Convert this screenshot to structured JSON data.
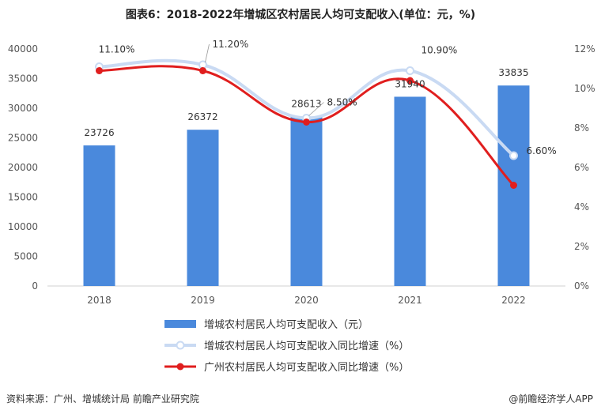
{
  "title": "图表6：2018-2022年增城区农村居民人均可支配收入(单位：元，%)",
  "footer": {
    "source": "资料来源：广州、增城统计局 前瞻产业研究院",
    "brand": "@前瞻经济学人APP"
  },
  "chart_data": {
    "type": "bar",
    "categories": [
      "2018",
      "2019",
      "2020",
      "2021",
      "2022"
    ],
    "series": [
      {
        "name": "增城农村居民人均可支配收入（元）",
        "type": "bar",
        "axis": "left",
        "values": [
          23726,
          26372,
          28613,
          31940,
          33835
        ],
        "labels": [
          "23726",
          "26372",
          "28613",
          "31940",
          "33835"
        ],
        "color": "#4a89dc"
      },
      {
        "name": "增城农村居民人均可支配收入同比增速（%）",
        "type": "line",
        "axis": "right",
        "values": [
          11.1,
          11.2,
          8.5,
          10.9,
          6.6
        ],
        "labels": [
          "11.10%",
          "11.20%",
          "8.50%",
          "10.90%",
          "6.60%"
        ],
        "color": "#c9daf3"
      },
      {
        "name": "广州农村居民人均可支配收入同比增速（%）",
        "type": "line",
        "axis": "right",
        "values": [
          10.9,
          10.9,
          8.3,
          10.4,
          5.1
        ],
        "color": "#e01e1e"
      }
    ],
    "y_left": {
      "min": 0,
      "max": 40000,
      "step": 5000,
      "ticks": [
        "0",
        "5000",
        "10000",
        "15000",
        "20000",
        "25000",
        "30000",
        "35000",
        "40000"
      ]
    },
    "y_right": {
      "min": 0,
      "max": 12,
      "step": 2,
      "ticks": [
        "0%",
        "2%",
        "4%",
        "6%",
        "8%",
        "10%",
        "12%"
      ]
    },
    "grid": false,
    "legend_position": "bottom-center"
  }
}
